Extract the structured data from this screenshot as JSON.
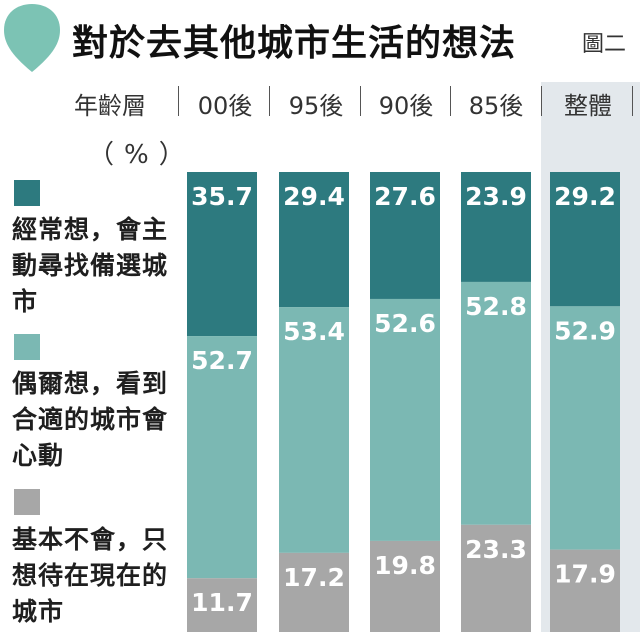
{
  "header": {
    "title": "對於去其他城市生活的想法",
    "figure_no": "圖二"
  },
  "chart_data": {
    "type": "bar",
    "stacked": true,
    "x_header": "年齡層",
    "unit": "（%）",
    "categories": [
      "00後",
      "95後",
      "90後",
      "85後",
      "整體"
    ],
    "series": [
      {
        "name": "經常想，會主動尋找備選城市",
        "color": "#2d7a7f",
        "values": [
          35.7,
          29.4,
          27.6,
          23.9,
          29.2
        ]
      },
      {
        "name": "偶爾想，看到合適的城市會心動",
        "color": "#7bb8b3",
        "values": [
          52.7,
          53.4,
          52.6,
          52.8,
          52.9
        ]
      },
      {
        "name": "基本不會，只想待在現在的城市",
        "color": "#a7a7a7",
        "values": [
          11.7,
          17.2,
          19.8,
          23.3,
          17.9
        ]
      }
    ],
    "ylim": [
      0,
      100
    ],
    "grid": false,
    "legend_position": "left"
  },
  "legend": {
    "items": [
      {
        "label": "經常想，會主動尋找備選城市",
        "color": "#2d7a7f"
      },
      {
        "label": "偶爾想，看到合適的城市會心動",
        "color": "#7bb8b3"
      },
      {
        "label": "基本不會，只想待在現在的城市",
        "color": "#a7a7a7"
      }
    ]
  },
  "icons": {
    "logo": "leaf-drop-icon",
    "logo_color": "#7cc3b4"
  }
}
